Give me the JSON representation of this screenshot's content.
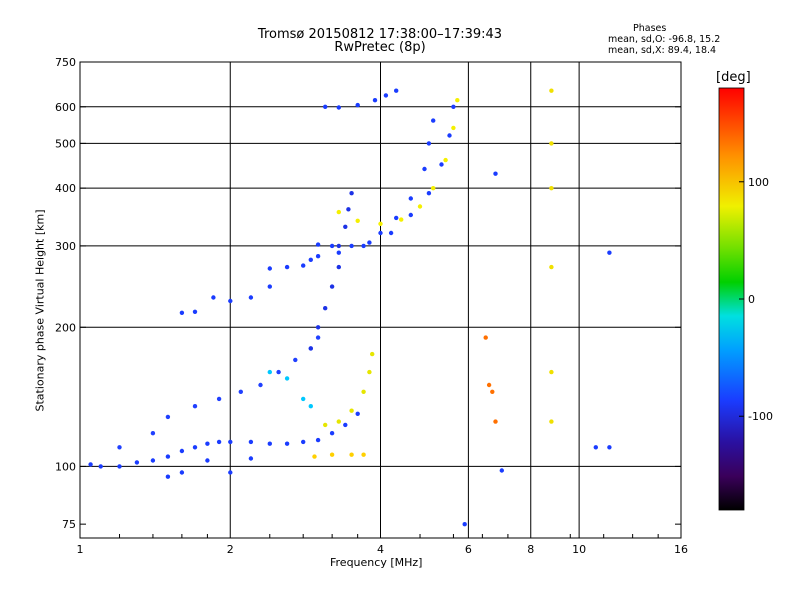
{
  "chart_data": {
    "type": "scatter",
    "title": "Tromsø 20150812 17:38:00–17:39:43",
    "subtitle": "RwPretec (8p)",
    "stats": {
      "heading": "Phases",
      "line1": "mean, sd,O:  -96.8, 15.2",
      "line2": "mean, sd,X:  89.4, 18.4"
    },
    "xlabel": "Frequency [MHz]",
    "ylabel": "Stationary phase Virtual Height [km]",
    "x_scale": "log",
    "y_scale": "log",
    "xlim": [
      1,
      16
    ],
    "ylim": [
      70,
      750
    ],
    "x_ticks": [
      1,
      2,
      4,
      6,
      8,
      10,
      16
    ],
    "x_tick_labels": [
      "1",
      "2",
      "4",
      "6",
      "8",
      "10",
      "16"
    ],
    "x_gridlines": [
      1,
      2,
      4,
      6,
      8,
      10,
      16
    ],
    "y_ticks": [
      75,
      100,
      200,
      300,
      400,
      500,
      600,
      750
    ],
    "y_tick_labels": [
      "75",
      "100",
      "200",
      "300",
      "400",
      "500",
      "600",
      "750"
    ],
    "y_gridlines": [
      100,
      200,
      300,
      400,
      500,
      600
    ],
    "grid": true,
    "colorbar": {
      "label": "[deg]",
      "min": -180,
      "max": 180,
      "ticks": [
        100,
        0,
        -100
      ],
      "tick_labels": [
        "100",
        "0",
        "-100"
      ]
    },
    "traces": [
      {
        "name": "",
        "phase": -100,
        "color": "#1a3cff",
        "points": [
          [
            1.05,
            101
          ],
          [
            1.1,
            100
          ],
          [
            1.2,
            100
          ],
          [
            1.3,
            102
          ],
          [
            1.4,
            103
          ],
          [
            1.5,
            105
          ],
          [
            1.6,
            108
          ],
          [
            1.7,
            110
          ],
          [
            1.8,
            112
          ],
          [
            1.9,
            113
          ],
          [
            2.0,
            113
          ],
          [
            2.2,
            113
          ],
          [
            2.4,
            112
          ],
          [
            2.6,
            112
          ],
          [
            2.8,
            113
          ],
          [
            3.0,
            114
          ],
          [
            3.2,
            118
          ],
          [
            3.4,
            123
          ],
          [
            3.6,
            130
          ]
        ]
      },
      {
        "name": "",
        "phase": -95,
        "color": "#2040ff",
        "points": [
          [
            1.2,
            110
          ],
          [
            1.4,
            118
          ],
          [
            1.5,
            128
          ],
          [
            1.7,
            135
          ],
          [
            1.9,
            140
          ],
          [
            2.1,
            145
          ],
          [
            2.3,
            150
          ],
          [
            2.5,
            160
          ],
          [
            2.7,
            170
          ],
          [
            2.9,
            180
          ],
          [
            3.0,
            190
          ]
        ]
      },
      {
        "name": "",
        "phase": -100,
        "color": "#1a3cff",
        "points": [
          [
            1.5,
            95
          ],
          [
            1.6,
            97
          ],
          [
            1.8,
            103
          ],
          [
            2.0,
            97
          ],
          [
            2.2,
            104
          ]
        ]
      },
      {
        "name": "",
        "phase": -100,
        "color": "#1a3cff",
        "points": [
          [
            1.6,
            215
          ],
          [
            1.7,
            216
          ]
        ]
      },
      {
        "name": "",
        "phase": -100,
        "color": "#1a3cff",
        "points": [
          [
            1.85,
            232
          ],
          [
            2.0,
            228
          ],
          [
            2.2,
            232
          ],
          [
            2.4,
            245
          ]
        ]
      },
      {
        "name": "",
        "phase": -100,
        "color": "#1a3cff",
        "points": [
          [
            2.4,
            268
          ],
          [
            2.6,
            270
          ],
          [
            2.8,
            272
          ],
          [
            2.9,
            280
          ]
        ]
      },
      {
        "name": "",
        "phase": -105,
        "color": "#1c32e6",
        "points": [
          [
            2.9,
            180
          ],
          [
            3.0,
            200
          ],
          [
            3.1,
            220
          ],
          [
            3.2,
            245
          ],
          [
            3.3,
            270
          ],
          [
            3.3,
            300
          ],
          [
            3.4,
            330
          ],
          [
            3.45,
            360
          ],
          [
            3.5,
            390
          ]
        ]
      },
      {
        "name": "",
        "phase": -100,
        "color": "#1a3cff",
        "points": [
          [
            3.0,
            302
          ],
          [
            3.2,
            300
          ],
          [
            3.5,
            300
          ],
          [
            3.8,
            305
          ],
          [
            4.0,
            320
          ],
          [
            4.3,
            345
          ],
          [
            4.6,
            380
          ],
          [
            4.9,
            440
          ],
          [
            5.0,
            500
          ],
          [
            5.1,
            560
          ]
        ]
      },
      {
        "name": "",
        "phase": -100,
        "color": "#1a3cff",
        "points": [
          [
            3.0,
            285
          ],
          [
            3.3,
            290
          ],
          [
            3.7,
            300
          ],
          [
            4.2,
            320
          ],
          [
            4.6,
            350
          ],
          [
            5.0,
            390
          ],
          [
            5.3,
            450
          ],
          [
            5.5,
            520
          ],
          [
            5.6,
            600
          ]
        ]
      },
      {
        "name": "",
        "phase": -100,
        "color": "#1a3cff",
        "points": [
          [
            3.1,
            600
          ],
          [
            3.3,
            598
          ],
          [
            3.6,
            605
          ],
          [
            3.9,
            620
          ],
          [
            4.1,
            635
          ],
          [
            4.3,
            650
          ]
        ]
      },
      {
        "name": "",
        "phase": 95,
        "color": "#f5f000",
        "points": [
          [
            3.3,
            355
          ],
          [
            3.6,
            340
          ],
          [
            4.0,
            335
          ],
          [
            4.4,
            342
          ],
          [
            4.8,
            365
          ],
          [
            5.1,
            400
          ],
          [
            5.4,
            460
          ],
          [
            5.6,
            540
          ],
          [
            5.7,
            620
          ]
        ]
      },
      {
        "name": "",
        "phase": 95,
        "color": "#e6e600",
        "points": [
          [
            3.1,
            123
          ],
          [
            3.3,
            125
          ],
          [
            3.5,
            132
          ],
          [
            3.7,
            145
          ],
          [
            3.8,
            160
          ],
          [
            3.85,
            175
          ]
        ]
      },
      {
        "name": "",
        "phase": 100,
        "color": "#ffd000",
        "points": [
          [
            2.95,
            105
          ],
          [
            3.2,
            106
          ],
          [
            3.5,
            106
          ],
          [
            3.7,
            106
          ]
        ]
      },
      {
        "name": "",
        "phase": -30,
        "color": "#00c8ff",
        "points": [
          [
            2.4,
            160
          ],
          [
            2.6,
            155
          ],
          [
            2.8,
            140
          ],
          [
            2.9,
            135
          ]
        ]
      },
      {
        "name": "",
        "phase": 140,
        "color": "#ff7000",
        "points": [
          [
            6.5,
            190
          ],
          [
            6.6,
            150
          ],
          [
            6.7,
            145
          ],
          [
            6.8,
            125
          ]
        ]
      },
      {
        "name": "",
        "phase": 100,
        "color": "#f0e000",
        "points": [
          [
            8.8,
            650
          ],
          [
            8.8,
            500
          ],
          [
            8.8,
            400
          ],
          [
            8.8,
            270
          ],
          [
            8.8,
            160
          ],
          [
            8.8,
            125
          ]
        ]
      },
      {
        "name": "",
        "phase": -100,
        "color": "#1a3cff",
        "points": [
          [
            10.8,
            110
          ],
          [
            11.5,
            110
          ],
          [
            11.5,
            290
          ],
          [
            7.0,
            98
          ],
          [
            5.9,
            75
          ],
          [
            6.8,
            430
          ]
        ]
      }
    ]
  }
}
